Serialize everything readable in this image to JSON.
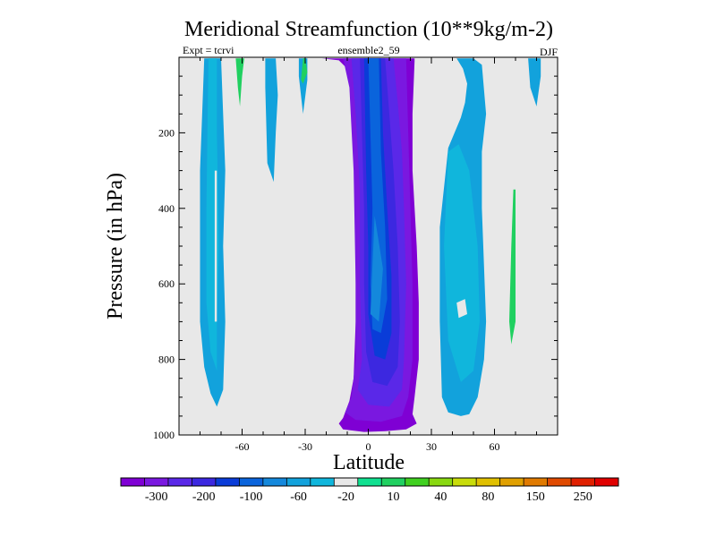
{
  "chart_data": {
    "type": "heatmap",
    "title": "Meridional Streamfunction (10**9kg/m-2)",
    "subtitle_left": "Expt = tcrvi",
    "subtitle_center": "ensemble2_59",
    "subtitle_right": "DJF",
    "xlabel": "Latitude",
    "ylabel": "Pressure (in hPa)",
    "xlim": [
      -90,
      90
    ],
    "ylim": [
      1000,
      0
    ],
    "x_ticks": [
      -60,
      -30,
      0,
      30,
      60
    ],
    "y_ticks": [
      200,
      400,
      600,
      800,
      1000
    ],
    "background_color": "#e8e8e8",
    "colorbar": {
      "colors": [
        "#7f00d4",
        "#7a18e0",
        "#5a28e8",
        "#3c28e0",
        "#0a3cd8",
        "#0a64dc",
        "#1488dc",
        "#12a2dc",
        "#10b6dc",
        "#e8e8e8",
        "#10e090",
        "#20d060",
        "#40d020",
        "#88d810",
        "#c8dc0a",
        "#e0c000",
        "#e0a000",
        "#e07a00",
        "#e04a00",
        "#e02000",
        "#e00000"
      ],
      "labels": [
        "-300",
        "-200",
        "-100",
        "-60",
        "-20",
        "10",
        "40",
        "80",
        "150",
        "250"
      ]
    },
    "regions": [
      {
        "level": 0,
        "points": [
          [
            -22,
            3
          ],
          [
            -14,
            8
          ],
          [
            -10,
            30
          ],
          [
            -7,
            120
          ],
          [
            -6,
            250
          ],
          [
            -6,
            500
          ],
          [
            -6,
            700
          ],
          [
            -7,
            850
          ],
          [
            -9,
            910
          ],
          [
            -12,
            955
          ],
          [
            -14,
            970
          ],
          [
            -12,
            985
          ],
          [
            -2,
            992
          ],
          [
            8,
            990
          ],
          [
            18,
            985
          ],
          [
            23,
            970
          ],
          [
            21,
            945
          ],
          [
            22,
            900
          ],
          [
            24,
            800
          ],
          [
            24,
            650
          ],
          [
            23,
            500
          ],
          [
            21,
            300
          ],
          [
            21,
            150
          ],
          [
            22,
            10
          ],
          [
            22,
            3
          ]
        ]
      },
      {
        "level": 1,
        "points": [
          [
            -12,
            3
          ],
          [
            -9,
            80
          ],
          [
            -7,
            300
          ],
          [
            -6,
            600
          ],
          [
            -6,
            800
          ],
          [
            -8,
            900
          ],
          [
            -11,
            940
          ],
          [
            -6,
            960
          ],
          [
            6,
            965
          ],
          [
            16,
            950
          ],
          [
            19,
            900
          ],
          [
            21,
            800
          ],
          [
            21,
            600
          ],
          [
            20,
            400
          ],
          [
            19,
            200
          ],
          [
            18,
            3
          ]
        ]
      },
      {
        "level": 2,
        "points": [
          [
            -8,
            3
          ],
          [
            -6,
            150
          ],
          [
            -4,
            350
          ],
          [
            -4,
            600
          ],
          [
            -3,
            800
          ],
          [
            -5,
            880
          ],
          [
            0,
            920
          ],
          [
            10,
            925
          ],
          [
            16,
            880
          ],
          [
            17,
            800
          ],
          [
            18,
            600
          ],
          [
            17,
            400
          ],
          [
            16,
            250
          ],
          [
            14,
            120
          ],
          [
            12,
            3
          ]
        ]
      },
      {
        "level": 3,
        "points": [
          [
            -4,
            3
          ],
          [
            -3,
            200
          ],
          [
            -2,
            400
          ],
          [
            -2,
            600
          ],
          [
            -1,
            780
          ],
          [
            2,
            860
          ],
          [
            9,
            870
          ],
          [
            14,
            820
          ],
          [
            15,
            700
          ],
          [
            14,
            500
          ],
          [
            12,
            300
          ],
          [
            10,
            150
          ],
          [
            8,
            3
          ]
        ]
      },
      {
        "level": 4,
        "points": [
          [
            -2,
            3
          ],
          [
            -1,
            300
          ],
          [
            0,
            500
          ],
          [
            0,
            680
          ],
          [
            3,
            790
          ],
          [
            8,
            800
          ],
          [
            11,
            730
          ],
          [
            11,
            580
          ],
          [
            9,
            400
          ],
          [
            7,
            200
          ],
          [
            6,
            3
          ]
        ]
      },
      {
        "level": 5,
        "points": [
          [
            0,
            3
          ],
          [
            1,
            200
          ],
          [
            2,
            400
          ],
          [
            1,
            600
          ],
          [
            2,
            720
          ],
          [
            6,
            730
          ],
          [
            9,
            640
          ],
          [
            8,
            450
          ],
          [
            6,
            250
          ],
          [
            5,
            3
          ]
        ]
      },
      {
        "level": 6,
        "points": [
          [
            3,
            420
          ],
          [
            2,
            550
          ],
          [
            1,
            680
          ],
          [
            5,
            700
          ],
          [
            7,
            560
          ]
        ]
      },
      {
        "level": 7,
        "points": [
          [
            -78,
            3
          ],
          [
            -80,
            300
          ],
          [
            -80,
            700
          ],
          [
            -78,
            820
          ],
          [
            -75,
            890
          ],
          [
            -72,
            925
          ],
          [
            -69,
            880
          ],
          [
            -68,
            700
          ],
          [
            -69,
            500
          ],
          [
            -68,
            300
          ],
          [
            -69,
            150
          ],
          [
            -70,
            3
          ]
        ]
      },
      {
        "level": 8,
        "points": [
          [
            -76,
            3
          ],
          [
            -77,
            400
          ],
          [
            -77,
            650
          ],
          [
            -75,
            780
          ],
          [
            -72,
            830
          ],
          [
            -72,
            700
          ],
          [
            -71,
            500
          ],
          [
            -72,
            200
          ],
          [
            -72,
            3
          ]
        ]
      },
      {
        "level": 9,
        "points": [
          [
            -73,
            300
          ],
          [
            -73,
            700
          ],
          [
            -72,
            700
          ],
          [
            -72,
            300
          ]
        ]
      },
      {
        "level": 7,
        "points": [
          [
            -49,
            3
          ],
          [
            -49,
            80
          ],
          [
            -48,
            280
          ],
          [
            -45,
            330
          ],
          [
            -44,
            200
          ],
          [
            -43,
            100
          ],
          [
            -44,
            3
          ]
        ]
      },
      {
        "level": 7,
        "points": [
          [
            -33,
            3
          ],
          [
            -33,
            50
          ],
          [
            -31,
            150
          ],
          [
            -29,
            60
          ],
          [
            -29,
            3
          ]
        ]
      },
      {
        "level": 10,
        "points": [
          [
            -31,
            3
          ],
          [
            -31,
            30
          ],
          [
            -30,
            30
          ],
          [
            -30,
            3
          ]
        ]
      },
      {
        "level": 11,
        "points": [
          [
            -63,
            3
          ],
          [
            -62,
            80
          ],
          [
            -61,
            130
          ],
          [
            -60,
            50
          ],
          [
            -59,
            3
          ]
        ]
      },
      {
        "level": 11,
        "points": [
          [
            -31,
            3
          ],
          [
            -32,
            60
          ],
          [
            -31,
            70
          ],
          [
            -29,
            40
          ],
          [
            -30,
            3
          ]
        ]
      },
      {
        "level": 7,
        "points": [
          [
            50,
            3
          ],
          [
            54,
            20
          ],
          [
            56,
            150
          ],
          [
            54,
            250
          ],
          [
            54,
            400
          ],
          [
            56,
            700
          ],
          [
            55,
            800
          ],
          [
            52,
            900
          ],
          [
            48,
            945
          ],
          [
            44,
            950
          ],
          [
            38,
            940
          ],
          [
            35,
            900
          ],
          [
            34,
            700
          ],
          [
            34,
            450
          ],
          [
            38,
            240
          ],
          [
            44,
            160
          ],
          [
            46,
            120
          ],
          [
            47,
            70
          ],
          [
            45,
            30
          ],
          [
            42,
            3
          ]
        ]
      },
      {
        "level": 8,
        "points": [
          [
            38,
            250
          ],
          [
            36,
            500
          ],
          [
            38,
            750
          ],
          [
            44,
            860
          ],
          [
            50,
            830
          ],
          [
            53,
            700
          ],
          [
            52,
            500
          ],
          [
            48,
            300
          ],
          [
            43,
            230
          ]
        ]
      },
      {
        "level": 9,
        "points": [
          [
            42,
            650
          ],
          [
            43,
            690
          ],
          [
            47,
            680
          ],
          [
            46,
            640
          ]
        ]
      },
      {
        "level": 7,
        "points": [
          [
            76,
            3
          ],
          [
            77,
            80
          ],
          [
            80,
            130
          ],
          [
            82,
            50
          ],
          [
            82,
            3
          ]
        ]
      },
      {
        "level": 11,
        "points": [
          [
            69,
            350
          ],
          [
            68,
            500
          ],
          [
            67,
            700
          ],
          [
            68,
            760
          ],
          [
            70,
            700
          ],
          [
            70,
            500
          ],
          [
            70,
            350
          ]
        ]
      }
    ]
  }
}
